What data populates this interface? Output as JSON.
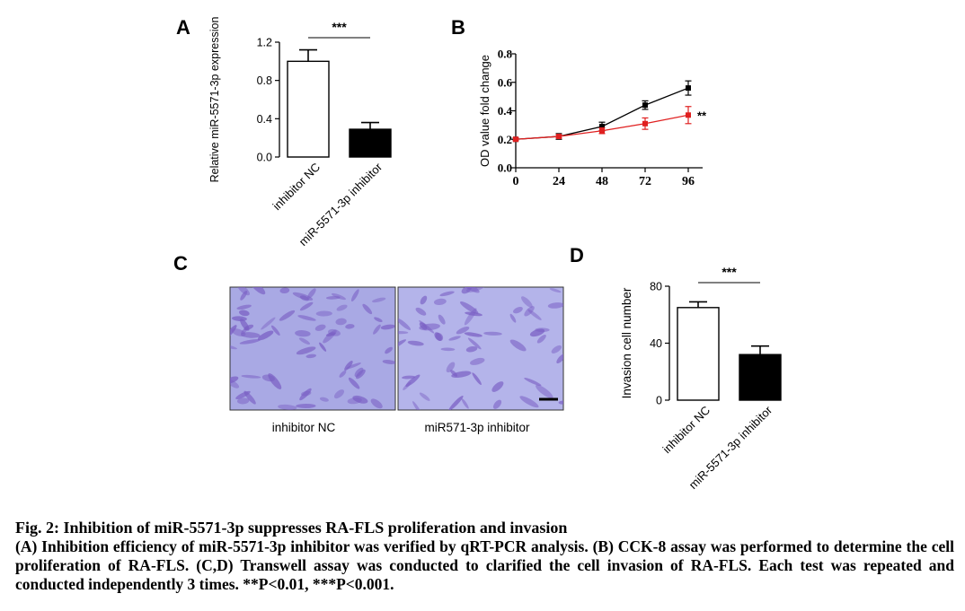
{
  "chart_data": [
    {
      "panel": "A",
      "type": "bar",
      "categories": [
        "inhibitor NC",
        "miR-5571-3p inhibitor"
      ],
      "values": [
        1.0,
        0.29
      ],
      "errors": [
        0.12,
        0.07
      ],
      "ylabel": "Relative miR-5571-3p expression",
      "ylim": [
        0,
        1.2
      ],
      "yticks": [
        "0.0",
        "0.4",
        "0.8",
        "1.2"
      ],
      "significance": "***",
      "colors": [
        "#ffffff",
        "#000000"
      ]
    },
    {
      "panel": "B",
      "type": "line",
      "x": [
        0,
        24,
        48,
        72,
        96
      ],
      "xticks": [
        "0",
        "24",
        "48",
        "72",
        "96"
      ],
      "ylabel": "OD value fold change",
      "ylim": [
        0,
        0.8
      ],
      "yticks": [
        "0.0",
        "0.2",
        "0.4",
        "0.6",
        "0.8"
      ],
      "significance": "**",
      "series": [
        {
          "values": [
            0.2,
            0.22,
            0.29,
            0.44,
            0.56
          ],
          "errors": [
            0.01,
            0.02,
            0.03,
            0.03,
            0.05
          ],
          "color": "#000000"
        },
        {
          "values": [
            0.2,
            0.22,
            0.26,
            0.31,
            0.37
          ],
          "errors": [
            0.01,
            0.01,
            0.02,
            0.04,
            0.06
          ],
          "color": "#e02020"
        }
      ]
    },
    {
      "panel": "D",
      "type": "bar",
      "categories": [
        "inhibitor NC",
        "miR-5571-3p inhibitor"
      ],
      "values": [
        65,
        32
      ],
      "errors": [
        4,
        6
      ],
      "ylabel": "Invasion cell number",
      "ylim": [
        0,
        80
      ],
      "yticks": [
        "0",
        "40",
        "80"
      ],
      "significance": "***",
      "colors": [
        "#ffffff",
        "#000000"
      ]
    }
  ],
  "panel_c": {
    "label": "C",
    "images": [
      {
        "label": "inhibitor NC",
        "tone": "#a9a9e4"
      },
      {
        "label": "miR571-3p inhibitor",
        "tone": "#b4b4ea"
      }
    ],
    "cell_color": "#7a5fc4"
  },
  "caption": {
    "title": "Fig. 2: Inhibition of miR-5571-3p suppresses RA-FLS proliferation and invasion",
    "body": "(A) Inhibition efficiency of miR-5571-3p inhibitor was verified by qRT-PCR analysis. (B) CCK-8 assay was performed to determine the cell proliferation of RA-FLS. (C,D) Transwell assay was conducted to clarified the cell invasion of RA-FLS. Each test was repeated and conducted independently 3 times. **P<0.01, ***P<0.001."
  }
}
